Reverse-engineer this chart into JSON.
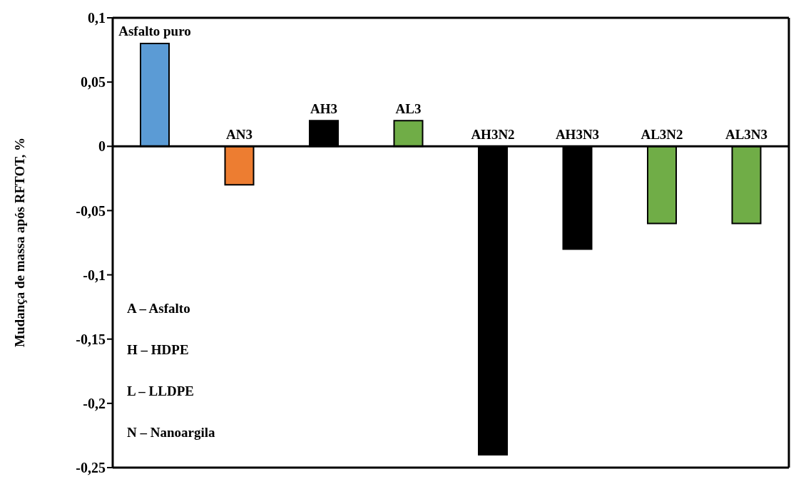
{
  "chart_data": {
    "type": "bar",
    "ylabel": "Mudança de massa após RFTOT, %",
    "categories": [
      "Asfalto puro",
      "AN3",
      "AH3",
      "AL3",
      "AH3N2",
      "AH3N3",
      "AL3N2",
      "AL3N3"
    ],
    "values": [
      0.08,
      -0.03,
      0.02,
      0.02,
      -0.24,
      -0.08,
      -0.06,
      -0.06
    ],
    "colors": [
      "#5b9bd5",
      "#ed7d31",
      "#000000",
      "#70ad47",
      "#000000",
      "#000000",
      "#70ad47",
      "#70ad47"
    ],
    "ylim": [
      -0.25,
      0.1
    ],
    "yticks": [
      {
        "value": -0.25,
        "label": "-0,25"
      },
      {
        "value": -0.2,
        "label": "-0,2"
      },
      {
        "value": -0.15,
        "label": "-0,15"
      },
      {
        "value": -0.1,
        "label": "-0,1"
      },
      {
        "value": -0.05,
        "label": "-0,05"
      },
      {
        "value": 0,
        "label": "0"
      },
      {
        "value": 0.05,
        "label": "0,05"
      },
      {
        "value": 0.1,
        "label": "0,1"
      }
    ],
    "grid": false,
    "legend": false,
    "annotations": [
      "A – Asfalto",
      "H – HDPE",
      "L – LLDPE",
      "N – Nanoargila"
    ]
  }
}
